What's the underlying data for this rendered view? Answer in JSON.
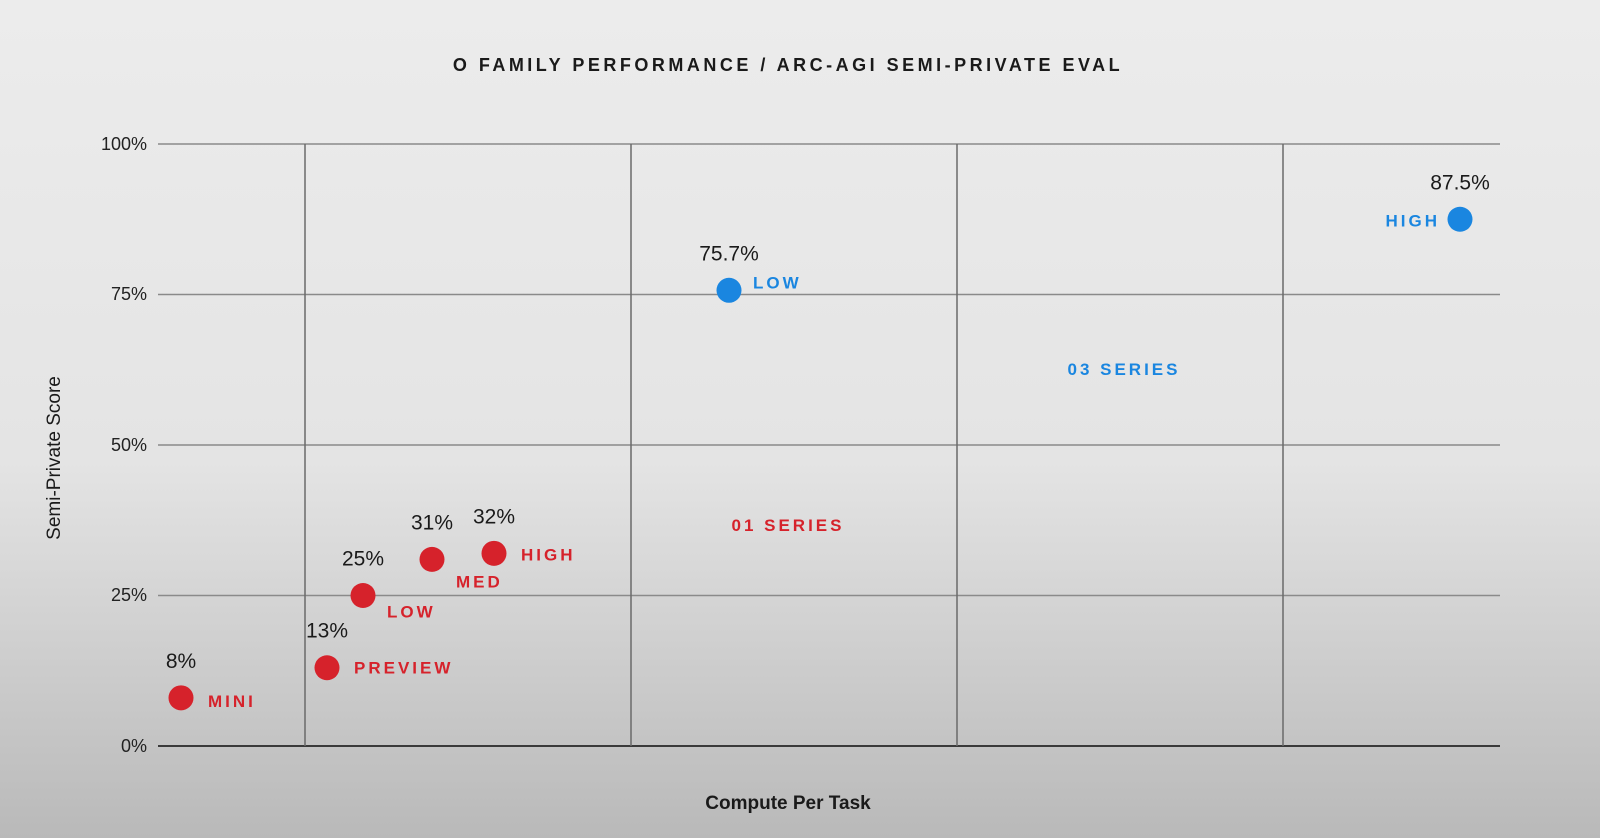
{
  "chart_data": {
    "type": "scatter",
    "title": "O FAMILY PERFORMANCE / ARC-AGI SEMI-PRIVATE EVAL",
    "xlabel": "Compute Per Task",
    "ylabel": "Semi-Private Score",
    "ylim": [
      0,
      100
    ],
    "yticks": [
      "0%",
      "25%",
      "50%",
      "75%",
      "100%"
    ],
    "grid": true,
    "colors": {
      "o1": "#d6222b",
      "o3": "#1a86e0"
    },
    "series": [
      {
        "name": "01 SERIES",
        "color": "#d6222b",
        "points": [
          {
            "label": "MINI",
            "value": 8,
            "value_label": "8%"
          },
          {
            "label": "PREVIEW",
            "value": 13,
            "value_label": "13%"
          },
          {
            "label": "LOW",
            "value": 25,
            "value_label": "25%"
          },
          {
            "label": "MED",
            "value": 31,
            "value_label": "31%"
          },
          {
            "label": "HIGH",
            "value": 32,
            "value_label": "32%"
          }
        ]
      },
      {
        "name": "03 SERIES",
        "color": "#1a86e0",
        "points": [
          {
            "label": "LOW",
            "value": 75.7,
            "value_label": "75.7%"
          },
          {
            "label": "HIGH",
            "value": 87.5,
            "value_label": "87.5%"
          }
        ]
      }
    ]
  }
}
